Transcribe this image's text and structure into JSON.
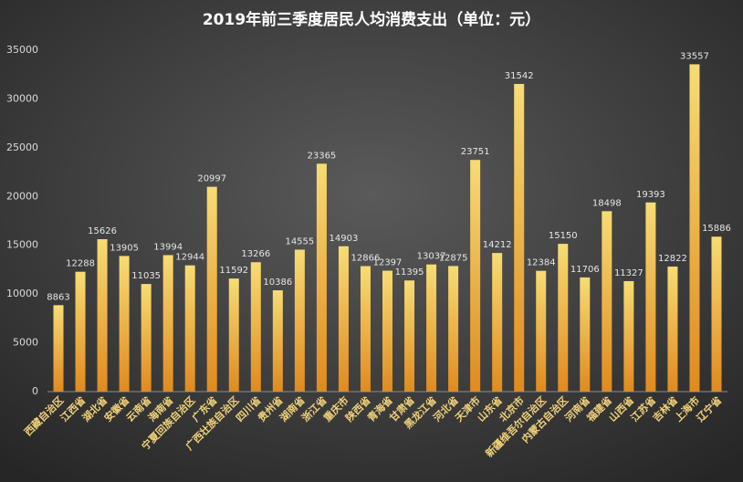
{
  "chart_data": {
    "type": "bar",
    "title": "2019年前三季度居民人均消费支出（单位：元）",
    "categories": [
      "西藏自治区",
      "江西省",
      "湖北省",
      "安徽省",
      "云南省",
      "海南省",
      "宁夏回族自治区",
      "广东省",
      "广西壮族自治区",
      "四川省",
      "贵州省",
      "湖南省",
      "浙江省",
      "重庆市",
      "陕西省",
      "青海省",
      "甘肃省",
      "黑龙江省",
      "河北省",
      "天津市",
      "山东省",
      "北京市",
      "新疆维吾尔自治区",
      "内蒙古自治区",
      "河南省",
      "福建省",
      "山西省",
      "江苏省",
      "吉林省",
      "上海市",
      "辽宁省"
    ],
    "values": [
      8863,
      12288,
      15626,
      13905,
      11035,
      13994,
      12944,
      20997,
      11592,
      13266,
      10386,
      14555,
      23365,
      14903,
      12866,
      12397,
      11395,
      13037,
      12875,
      23751,
      14212,
      31542,
      12384,
      15150,
      11706,
      18498,
      11327,
      19393,
      12822,
      33557,
      15886
    ],
    "color": "#e08a1e",
    "ylim": [
      0,
      35000
    ],
    "yticks": [
      0,
      5000,
      10000,
      15000,
      20000,
      25000,
      30000,
      35000
    ],
    "grid": false
  }
}
